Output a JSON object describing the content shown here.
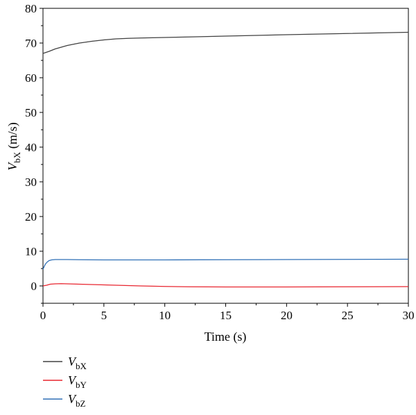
{
  "chart_data": {
    "type": "line",
    "title": "",
    "xlabel": "Time (s)",
    "ylabel": {
      "main": "V",
      "sub": "bX",
      "unit": " (m/s)"
    },
    "xlim": [
      0,
      30
    ],
    "ylim": [
      -5,
      80
    ],
    "xticks": [
      0,
      5,
      10,
      15,
      20,
      25,
      30
    ],
    "yticks": [
      0,
      10,
      20,
      30,
      40,
      50,
      60,
      70,
      80
    ],
    "grid": false,
    "legend_position": "bottom-left, below plot",
    "series": [
      {
        "name": "V",
        "name_sub": "bX",
        "color": "#404040",
        "x": [
          0,
          0.5,
          1,
          2,
          3,
          4,
          5,
          6,
          7,
          8,
          10,
          12,
          15,
          20,
          25,
          30
        ],
        "y": [
          67.0,
          67.6,
          68.3,
          69.3,
          70.0,
          70.5,
          70.9,
          71.2,
          71.35,
          71.45,
          71.6,
          71.75,
          72.0,
          72.4,
          72.75,
          73.1
        ]
      },
      {
        "name": "V",
        "name_sub": "bY",
        "color": "#e8252f",
        "x": [
          0,
          0.3,
          0.6,
          1,
          1.5,
          2,
          3,
          4,
          5,
          6,
          8,
          10,
          12,
          15,
          20,
          25,
          30
        ],
        "y": [
          0.0,
          0.2,
          0.5,
          0.6,
          0.65,
          0.6,
          0.5,
          0.4,
          0.3,
          0.2,
          0.0,
          -0.15,
          -0.25,
          -0.3,
          -0.3,
          -0.25,
          -0.2
        ]
      },
      {
        "name": "V",
        "name_sub": "bZ",
        "color": "#2e6fb6",
        "x": [
          0,
          0.1,
          0.2,
          0.35,
          0.5,
          0.7,
          1,
          1.5,
          2,
          3,
          5,
          8,
          10,
          15,
          20,
          25,
          30
        ],
        "y": [
          4.8,
          5.6,
          6.3,
          6.9,
          7.3,
          7.5,
          7.6,
          7.6,
          7.6,
          7.55,
          7.5,
          7.5,
          7.5,
          7.55,
          7.6,
          7.65,
          7.7
        ]
      }
    ]
  }
}
